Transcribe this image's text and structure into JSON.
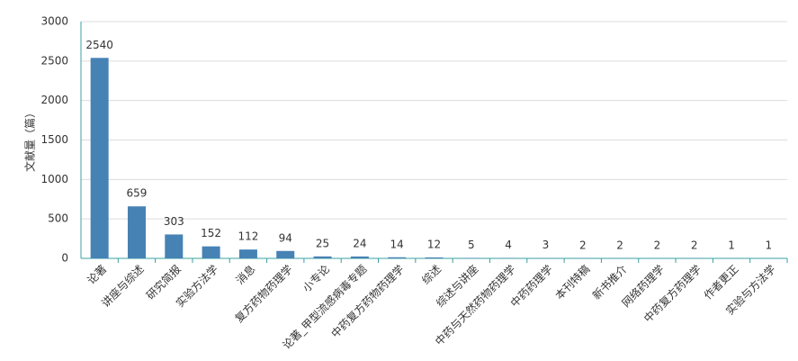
{
  "chart_data": {
    "type": "bar",
    "y_label": "文献量（篇）",
    "categories": [
      "论著",
      "讲座与综述",
      "研究简报",
      "实验方法学",
      "消息",
      "复方药物药理学",
      "小专论",
      "论著_甲型流感病毒专题",
      "中药复方药物药理学",
      "综述",
      "综述与讲座",
      "中药与天然药物药理学",
      "中药药理学",
      "本刊特稿",
      "新书推介",
      "网络药理学",
      "中药复方药理学",
      "作者更正",
      "实验与方法学"
    ],
    "values": [
      2540,
      659,
      303,
      152,
      112,
      94,
      25,
      24,
      14,
      12,
      5,
      4,
      3,
      2,
      2,
      2,
      2,
      1,
      1
    ],
    "color": "#4682b4",
    "ylim": [
      0,
      3000
    ],
    "yticks": [
      0,
      500,
      1000,
      1500,
      2000,
      2500,
      3000
    ],
    "grid": true
  }
}
